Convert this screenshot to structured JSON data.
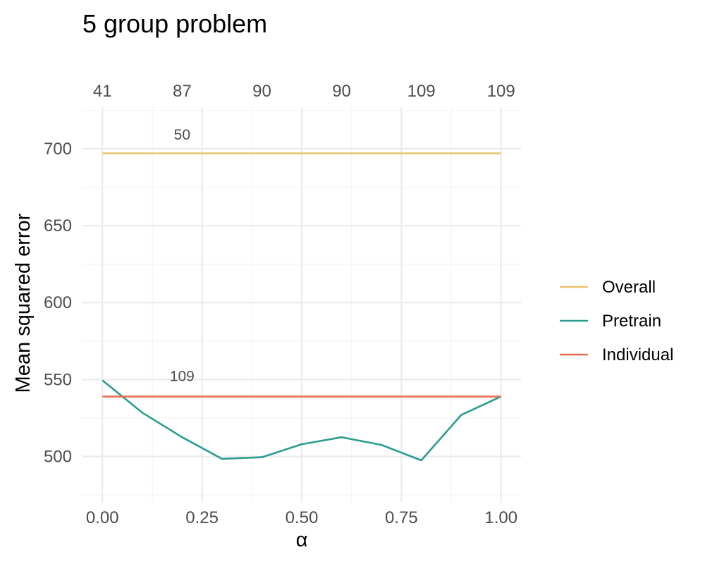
{
  "chart_data": {
    "type": "line",
    "title": "5 group problem",
    "xlabel": "α",
    "ylabel": "Mean squared error",
    "xlim": [
      -0.05,
      1.05
    ],
    "ylim": [
      470,
      727
    ],
    "x_ticks": [
      0,
      0.25,
      0.5,
      0.75,
      1
    ],
    "x_tick_labels": [
      "0.00",
      "0.25",
      "0.50",
      "0.75",
      "1.00"
    ],
    "y_ticks": [
      500,
      550,
      600,
      650,
      700
    ],
    "y_tick_labels": [
      "500",
      "550",
      "600",
      "650",
      "700"
    ],
    "top_axis": {
      "positions": [
        0,
        0.2,
        0.4,
        0.6,
        0.8,
        1
      ],
      "labels": [
        "41",
        "87",
        "90",
        "90",
        "109",
        "109"
      ]
    },
    "grid": true,
    "legend_position": "right",
    "series": [
      {
        "name": "Overall",
        "color": "#E9C46A",
        "x": [
          0,
          1
        ],
        "y": [
          697,
          697
        ]
      },
      {
        "name": "Pretrain",
        "color": "#2A9D8F",
        "x": [
          0,
          0.1,
          0.2,
          0.3,
          0.4,
          0.5,
          0.6,
          0.7,
          0.8,
          0.9,
          1
        ],
        "y": [
          549.5,
          528.5,
          512.5,
          498.5,
          499.5,
          508,
          512.5,
          507.5,
          497.5,
          527,
          539
        ]
      },
      {
        "name": "Individual",
        "color": "#E76F51",
        "x": [
          0,
          1
        ],
        "y": [
          539,
          539
        ]
      }
    ],
    "annotations": [
      {
        "text": "50",
        "x": 0.2,
        "y": 706
      },
      {
        "text": "109",
        "x": 0.2,
        "y": 549
      }
    ]
  }
}
